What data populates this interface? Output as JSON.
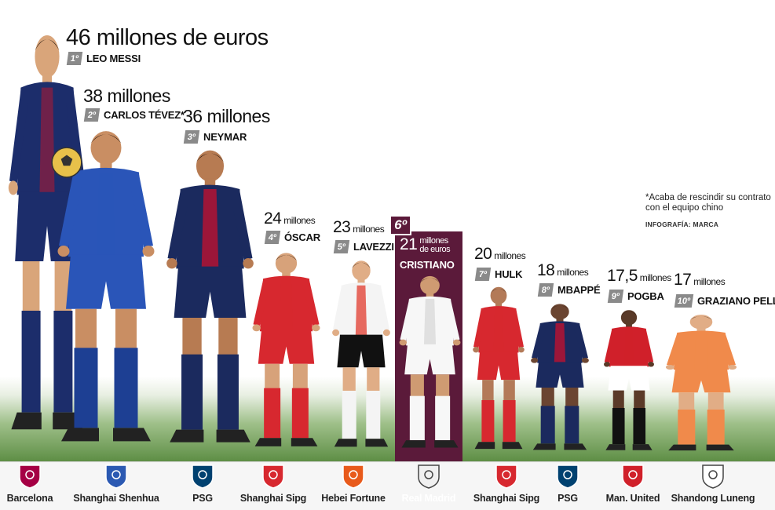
{
  "players": [
    {
      "rank": "1º",
      "name": "LEO MESSI",
      "amount": "46",
      "unit": " millones de euros",
      "club": "Barcelona",
      "kit": "#1c2d6b",
      "kit2": "#8b1e3f",
      "shorts": "#1c2d6b",
      "socks": "#1c2d6b",
      "logo_bg": "#a50044"
    },
    {
      "rank": "2º",
      "name": "CARLOS TÉVEZ*",
      "amount": "38",
      "unit": " millones",
      "club": "Shanghai Shenhua",
      "kit": "#2a55b8",
      "kit2": "#2a55b8",
      "shorts": "#2a55b8",
      "socks": "#1d3f93",
      "logo_bg": "#2b59b2"
    },
    {
      "rank": "3º",
      "name": "NEYMAR",
      "amount": "36",
      "unit": " millones",
      "club": "PSG",
      "kit": "#1b2a5e",
      "kit2": "#c8102e",
      "shorts": "#1b2a5e",
      "socks": "#1b2a5e",
      "logo_bg": "#004170"
    },
    {
      "rank": "4º",
      "name": "ÓSCAR",
      "amount": "24",
      "unit": " millones",
      "club": "Shanghai Sipg",
      "kit": "#d7282f",
      "kit2": "#d7282f",
      "shorts": "#d7282f",
      "socks": "#d7282f",
      "logo_bg": "#d7282f"
    },
    {
      "rank": "5º",
      "name": "LAVEZZI",
      "amount": "23",
      "unit": " millones",
      "club": "Hebei Fortune",
      "kit": "#f4f4f4",
      "kit2": "#e23b2e",
      "shorts": "#111111",
      "socks": "#f4f4f4",
      "logo_bg": "#e85a1b"
    },
    {
      "rank": "6º",
      "name": "CRISTIANO",
      "amount": "21",
      "unit": " millones de euros",
      "club": "Real Madrid",
      "kit": "#f7f7f7",
      "kit2": "#d8d8d8",
      "shorts": "#f7f7f7",
      "socks": "#f7f7f7",
      "logo_bg": "#f0f0f0"
    },
    {
      "rank": "7º",
      "name": "HULK",
      "amount": "20",
      "unit": " millones",
      "club": "Shanghai Sipg",
      "kit": "#d7282f",
      "kit2": "#d7282f",
      "shorts": "#d7282f",
      "socks": "#d7282f",
      "logo_bg": "#d7282f"
    },
    {
      "rank": "8º",
      "name": "MBAPPÉ",
      "amount": "18",
      "unit": " millones",
      "club": "PSG",
      "kit": "#1b2a5e",
      "kit2": "#c8102e",
      "shorts": "#1b2a5e",
      "socks": "#1b2a5e",
      "logo_bg": "#004170"
    },
    {
      "rank": "9º",
      "name": "POGBA",
      "amount": "17,5",
      "unit": " millones",
      "club": "Man. United",
      "kit": "#d0202a",
      "kit2": "#d0202a",
      "shorts": "#ffffff",
      "socks": "#111111",
      "logo_bg": "#d0202a"
    },
    {
      "rank": "10º",
      "name": "GRAZIANO PELLÉ",
      "amount": "17",
      "unit": " millones",
      "club": "Shandong Luneng",
      "kit": "#f08a4b",
      "kit2": "#f08a4b",
      "shorts": "#f08a4b",
      "socks": "#f08a4b",
      "logo_bg": "#ffffff"
    }
  ],
  "note": "*Acaba de rescindir su contrato con el equipo chino",
  "credit": "INFOGRAFÍA: MARCA",
  "icons": [
    "club-crest-icon",
    "football-icon"
  ]
}
